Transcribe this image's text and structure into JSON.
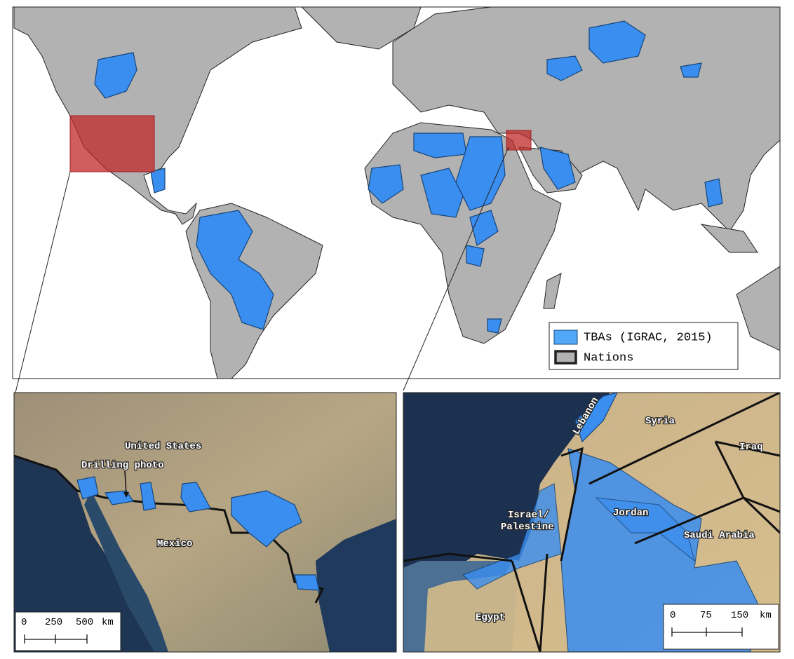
{
  "legend": [
    {
      "label": "TBAs (IGRAC, 2015)"
    },
    {
      "label": "Nations"
    }
  ],
  "insets": [
    {
      "labels": [
        "United States",
        "Drilling photo",
        "Mexico"
      ],
      "scale_bar": {
        "ticks": [
          "0",
          "250",
          "500"
        ],
        "unit": "km"
      }
    },
    {
      "labels": [
        "Lebanon",
        "Syria",
        "Iraq",
        "Israel/",
        "Palestine",
        "Jordan",
        "Saudi Arabia",
        "Egypt"
      ],
      "scale_bar": {
        "ticks": [
          "0",
          "75",
          "150"
        ],
        "unit": "km"
      }
    }
  ]
}
